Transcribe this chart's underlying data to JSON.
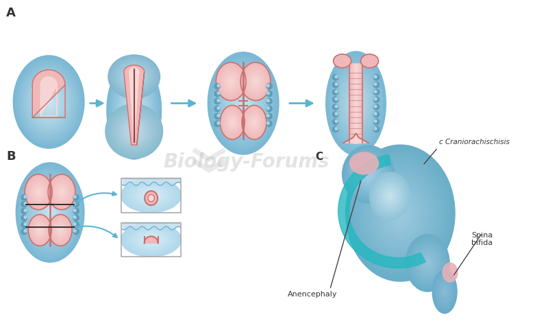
{
  "bg_color": "#ffffff",
  "label_A": "A",
  "label_B": "B",
  "label_C": "C",
  "blue_outer": "#8bbdd4",
  "blue_mid": "#a8cfe0",
  "blue_light": "#c5dfe8",
  "blue_dark": "#5a9ab5",
  "blue_glow": "#b8d8e8",
  "pink_outer": "#e8a0a0",
  "pink_mid": "#f0b8b8",
  "pink_light": "#f8d8d8",
  "pink_dark": "#c87070",
  "pink_deep": "#b86060",
  "arrow_color": "#5ab5d0",
  "somite_color": "#7ab8d4",
  "teal_color": "#30c0c8",
  "line_color": "#222222",
  "text_color": "#333333",
  "label_cranio": "c Craniorachischisis",
  "label_anencephaly": "Anencephaly",
  "label_spina": "Spina\nbifida"
}
